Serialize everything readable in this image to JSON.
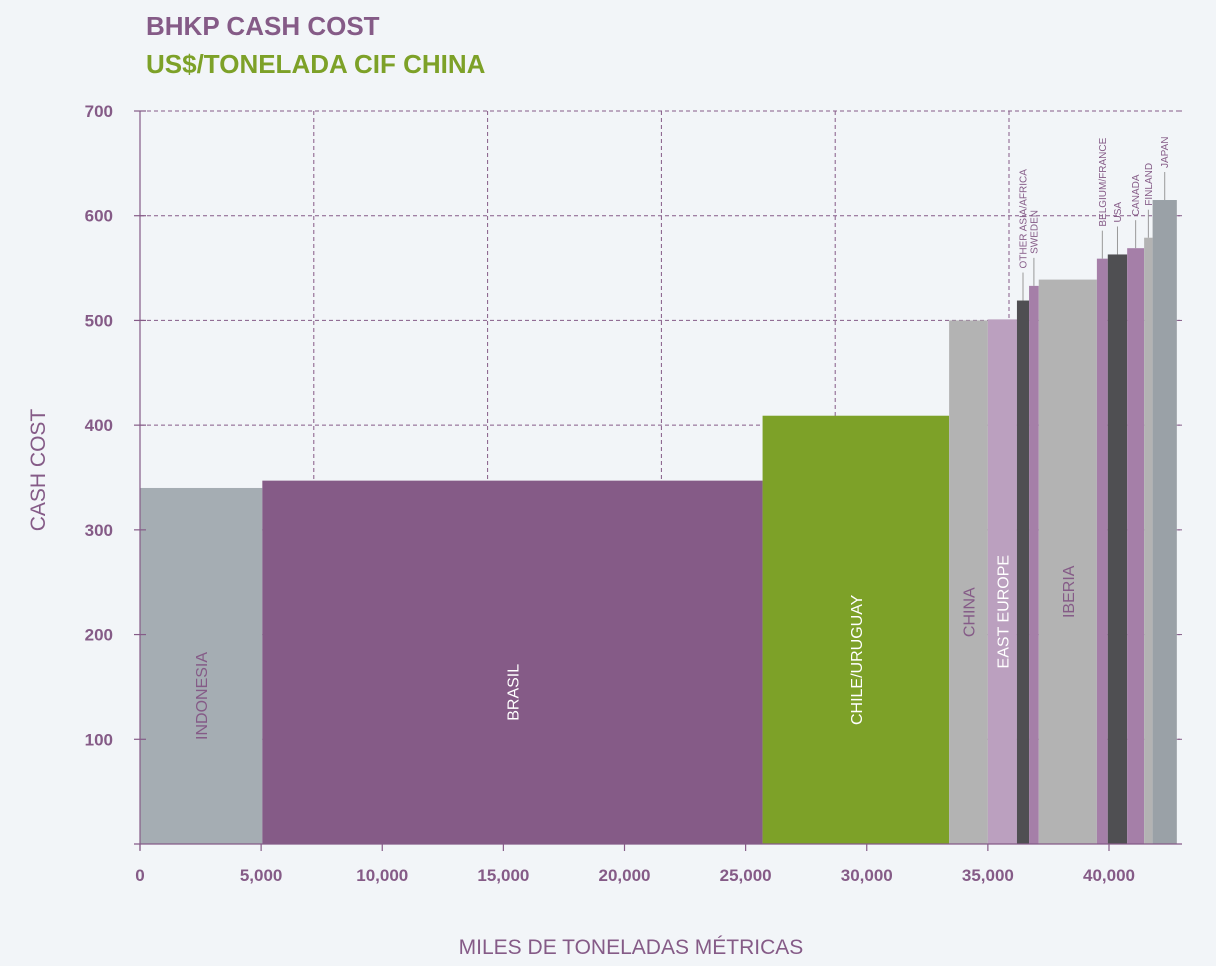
{
  "colors": {
    "title_purple": "#855b87",
    "title_green": "#7da128",
    "axis": "#855b87",
    "grid": "#855b87"
  },
  "chart_data": {
    "type": "bar",
    "subtype": "cost-curve",
    "title": "BHKP CASH COST",
    "subtitle": "US$/TONELADA CIF CHINA",
    "xlabel": "MILES DE TONELADAS MÉTRICAS",
    "ylabel": "CASH COST",
    "xlim": [
      0,
      43000
    ],
    "ylim": [
      0,
      700
    ],
    "x_ticks": [
      0,
      5000,
      10000,
      15000,
      20000,
      25000,
      30000,
      35000,
      40000
    ],
    "x_tick_labels": [
      "0",
      "5,000",
      "10,000",
      "15,000",
      "20,000",
      "25,000",
      "30,000",
      "35,000",
      "40,000"
    ],
    "y_ticks": [
      100,
      200,
      300,
      400,
      500,
      600,
      700
    ],
    "y_tick_labels": [
      "100",
      "200",
      "300",
      "400",
      "500",
      "600",
      "700"
    ],
    "grid": true,
    "bars": [
      {
        "label": "INDONESIA",
        "x_start": 0,
        "x_end": 5050,
        "value": 340,
        "color": "#a5adb3",
        "label_color": "#855b87",
        "label_style": "inside"
      },
      {
        "label": "BRASIL",
        "x_start": 5050,
        "x_end": 25700,
        "value": 347,
        "color": "#855b87",
        "label_color": "#ffffff",
        "label_style": "inside"
      },
      {
        "label": "CHILE/URUGUAY",
        "x_start": 25700,
        "x_end": 33400,
        "value": 409,
        "color": "#7da128",
        "label_color": "#ffffff",
        "label_style": "inside"
      },
      {
        "label": "CHINA",
        "x_start": 33400,
        "x_end": 35000,
        "value": 500,
        "color": "#b3b3b3",
        "label_color": "#855b87",
        "label_style": "inside"
      },
      {
        "label": "EAST EUROPE",
        "x_start": 35000,
        "x_end": 36200,
        "value": 501,
        "color": "#bba0bf",
        "label_color": "#ffffff",
        "label_style": "inside"
      },
      {
        "label": "OTHER ASIA/AFRICA",
        "x_start": 36200,
        "x_end": 36700,
        "value": 519,
        "color": "#4f4f52",
        "label_color": "#855b87",
        "label_style": "above"
      },
      {
        "label": "SWEDEN",
        "x_start": 36700,
        "x_end": 37100,
        "value": 533,
        "color": "#a57fa8",
        "label_color": "#855b87",
        "label_style": "above"
      },
      {
        "label": "IBERIA",
        "x_start": 37100,
        "x_end": 39500,
        "value": 539,
        "color": "#b3b3b3",
        "label_color": "#855b87",
        "label_style": "inside"
      },
      {
        "label": "BELGIUM/FRANCE",
        "x_start": 39500,
        "x_end": 39950,
        "value": 559,
        "color": "#a57fa8",
        "label_color": "#855b87",
        "label_style": "above"
      },
      {
        "label": "USA",
        "x_start": 39950,
        "x_end": 40750,
        "value": 563,
        "color": "#4f4f52",
        "label_color": "#855b87",
        "label_style": "above"
      },
      {
        "label": "CANADA",
        "x_start": 40750,
        "x_end": 41450,
        "value": 569,
        "color": "#a57fa8",
        "label_color": "#855b87",
        "label_style": "above"
      },
      {
        "label": "FINLAND",
        "x_start": 41450,
        "x_end": 41800,
        "value": 579,
        "color": "#b3b3b3",
        "label_color": "#855b87",
        "label_style": "above"
      },
      {
        "label": "JAPAN",
        "x_start": 41800,
        "x_end": 42800,
        "value": 615,
        "color": "#9aa1a7",
        "label_color": "#855b87",
        "label_style": "above"
      }
    ]
  }
}
